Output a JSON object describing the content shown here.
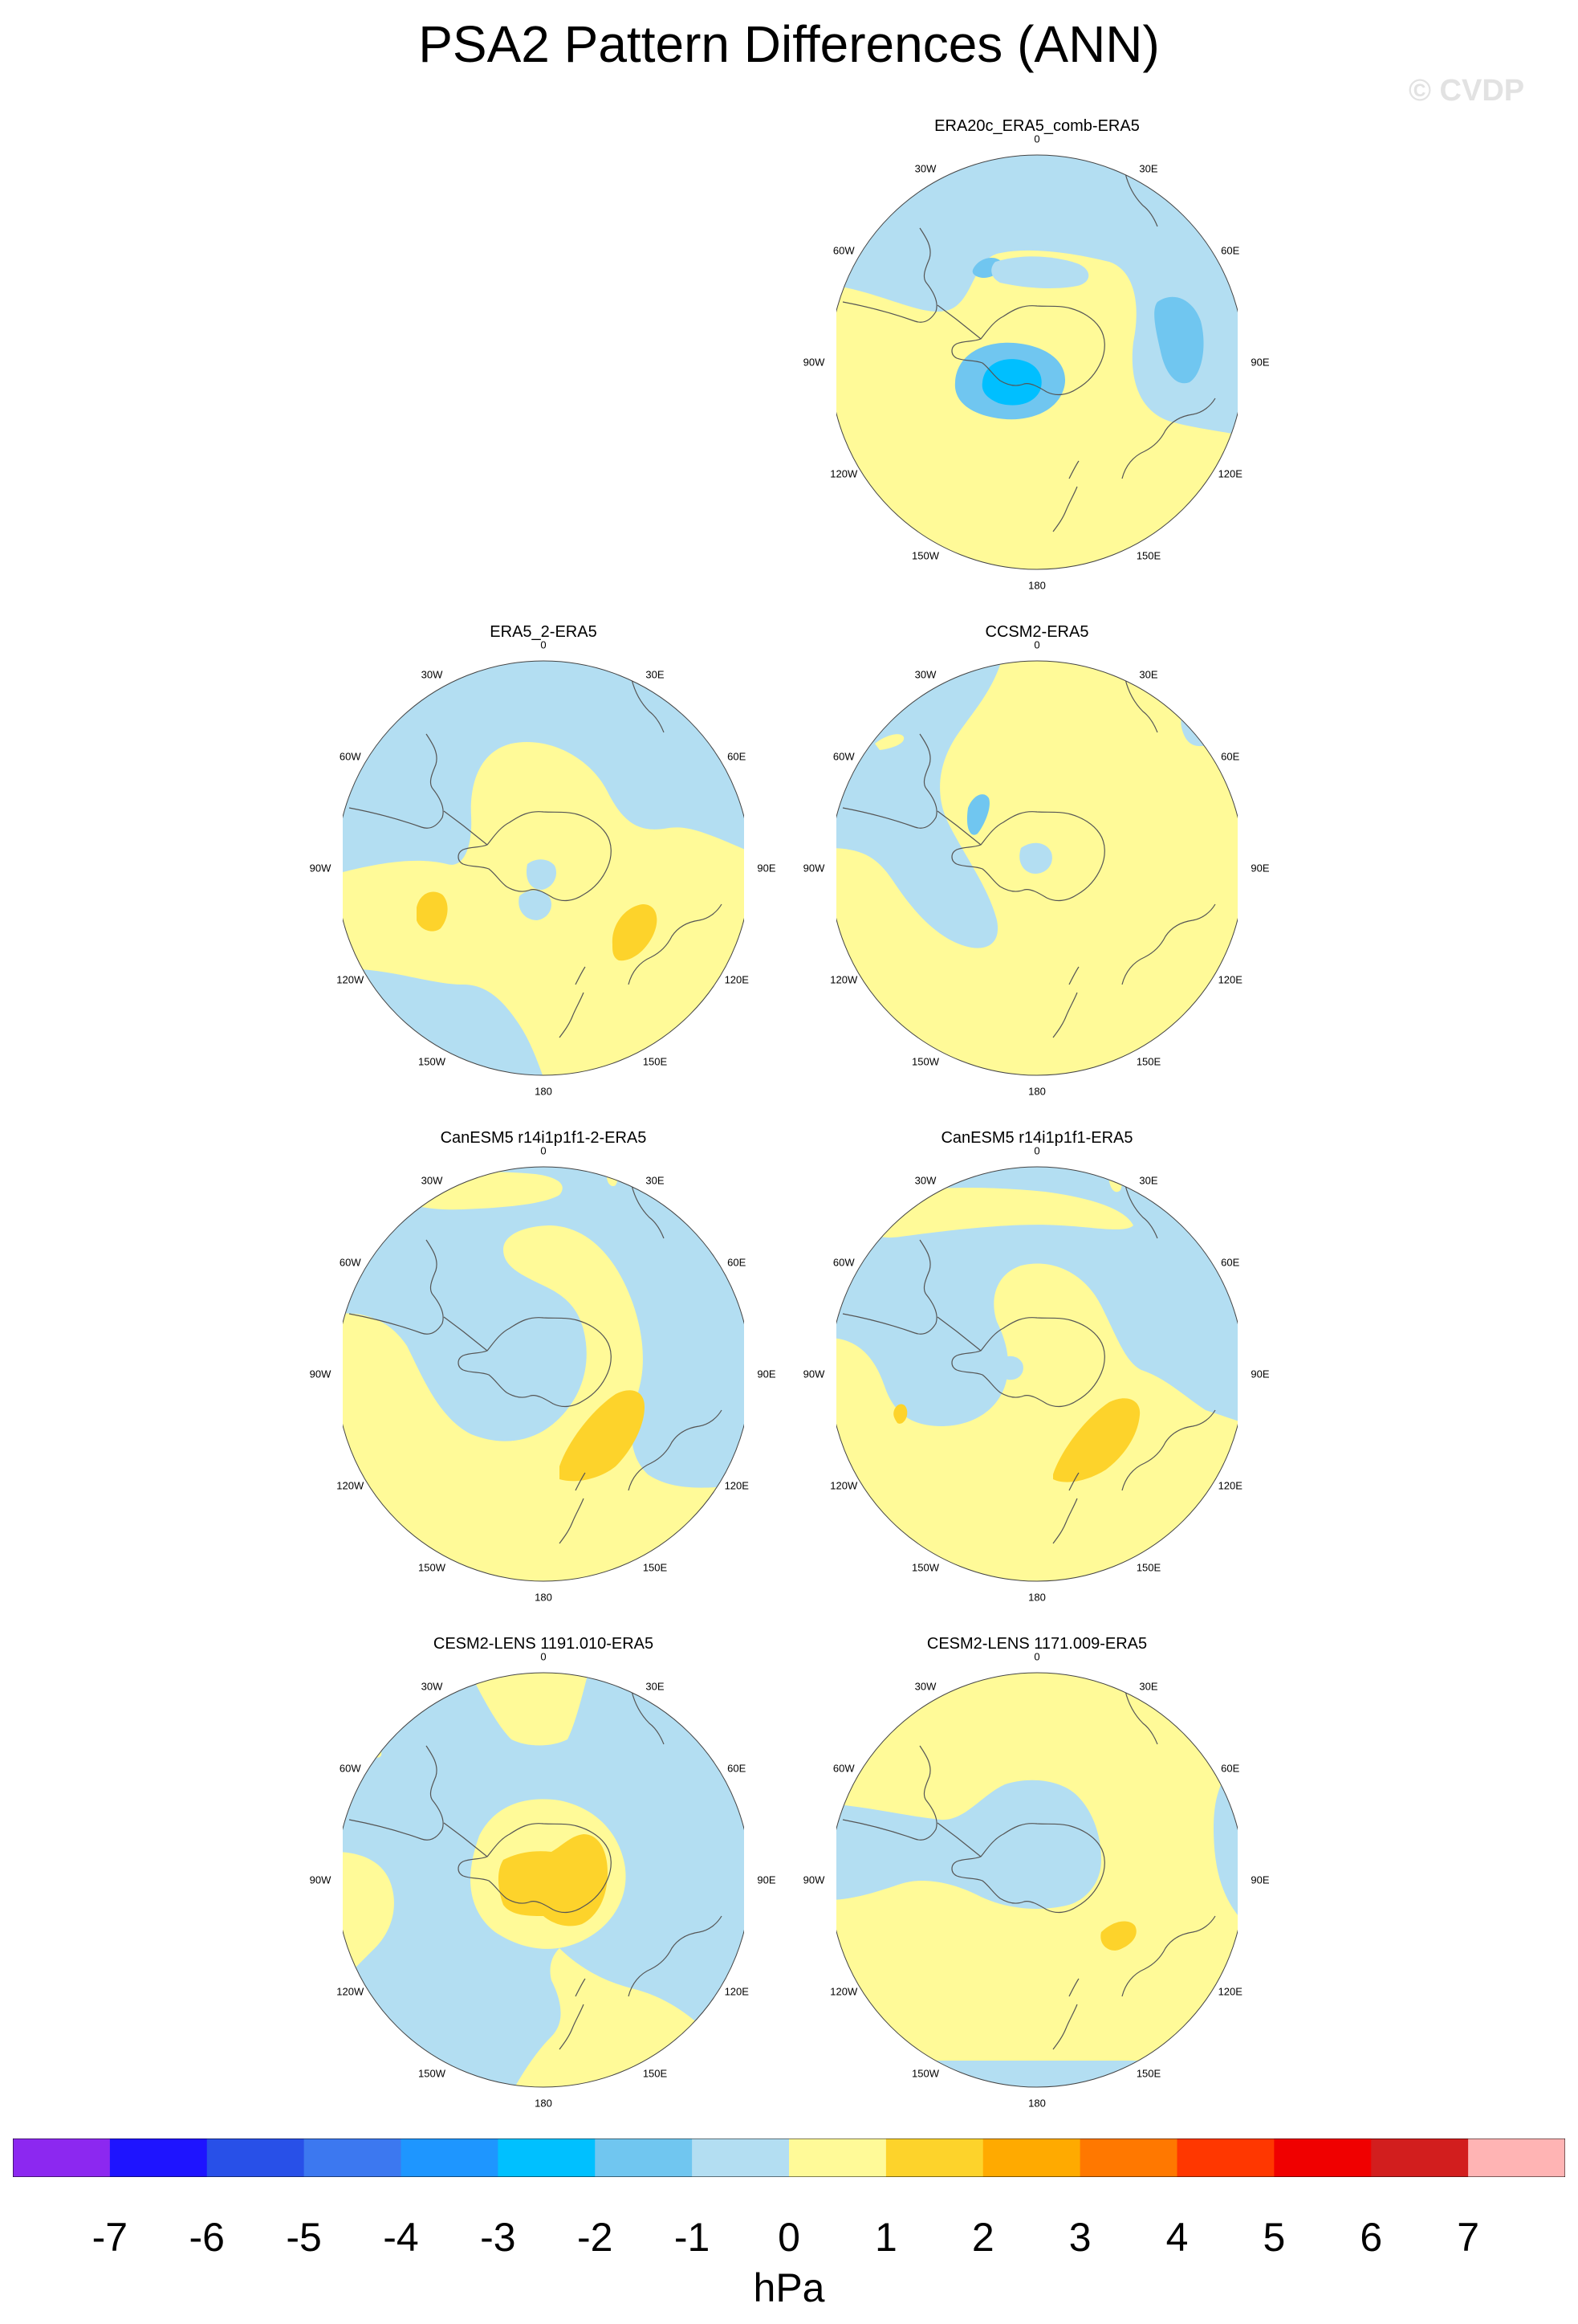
{
  "title": "PSA2 Pattern Differences (ANN)",
  "watermark": "© CVDP",
  "units": "hPa",
  "colors": {
    "neg1": "#b3def2",
    "neg2": "#70c6f0",
    "neg3": "#00bfff",
    "pos1": "#fffa98",
    "pos2": "#fdd32b",
    "coast": "#555555"
  },
  "colorbar": {
    "colors": [
      "#8c28f0",
      "#1e14ff",
      "#2850e8",
      "#3c78f0",
      "#1e96ff",
      "#00c0ff",
      "#70c6f0",
      "#b3def2",
      "#fffa98",
      "#fdd32b",
      "#ffaa00",
      "#ff7800",
      "#ff3700",
      "#f00000",
      "#d21e1e",
      "#ffb4b4"
    ],
    "ticks": [
      "-7",
      "-6",
      "-5",
      "-4",
      "-3",
      "-2",
      "-1",
      "0",
      "1",
      "2",
      "3",
      "4",
      "5",
      "6",
      "7"
    ]
  },
  "lon_labels": {
    "lon_0": "0",
    "lon_30e": "30E",
    "lon_60e": "60E",
    "lon_90e": "90E",
    "lon_120e": "120E",
    "lon_150e": "150E",
    "lon_180": "180",
    "lon_150w": "150W",
    "lon_120w": "120W",
    "lon_90w": "90W",
    "lon_60w": "60W",
    "lon_30w": "30W"
  },
  "panels": [
    {
      "title": "ERA20c_ERA5_comb-ERA5"
    },
    {
      "title": "ERA5_2-ERA5"
    },
    {
      "title": "CCSM2-ERA5"
    },
    {
      "title": "CanESM5 r14i1p1f1-2-ERA5"
    },
    {
      "title": "CanESM5 r14i1p1f1-ERA5"
    },
    {
      "title": "CESM2-LENS 1191.010-ERA5"
    },
    {
      "title": "CESM2-LENS 1171.009-ERA5"
    }
  ]
}
